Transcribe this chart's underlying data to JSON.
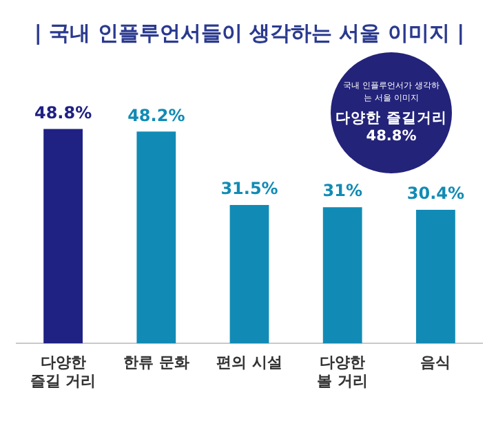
{
  "chart_data": {
    "type": "bar",
    "title": "| 국내 인플루언서들이 생각하는 서울 이미지 |",
    "categories": [
      "다양한\n즐길 거리",
      "한류 문화",
      "편의 시설",
      "다양한\n볼 거리",
      "음식"
    ],
    "values": [
      48.8,
      48.2,
      31.5,
      31,
      30.4
    ],
    "colors": [
      "#1f2183",
      "#118bb5",
      "#118bb5",
      "#118bb5",
      "#118bb5"
    ],
    "value_labels": [
      "48.8%",
      "48.2%",
      "31.5%",
      "31%",
      "30.4%"
    ],
    "tick_labels": "x",
    "grid": false,
    "legend": false,
    "annotations": [
      "국내 인플루언서가 생각하는 서울 이미지",
      "다양한 즐길거리",
      "48.8%"
    ]
  }
}
